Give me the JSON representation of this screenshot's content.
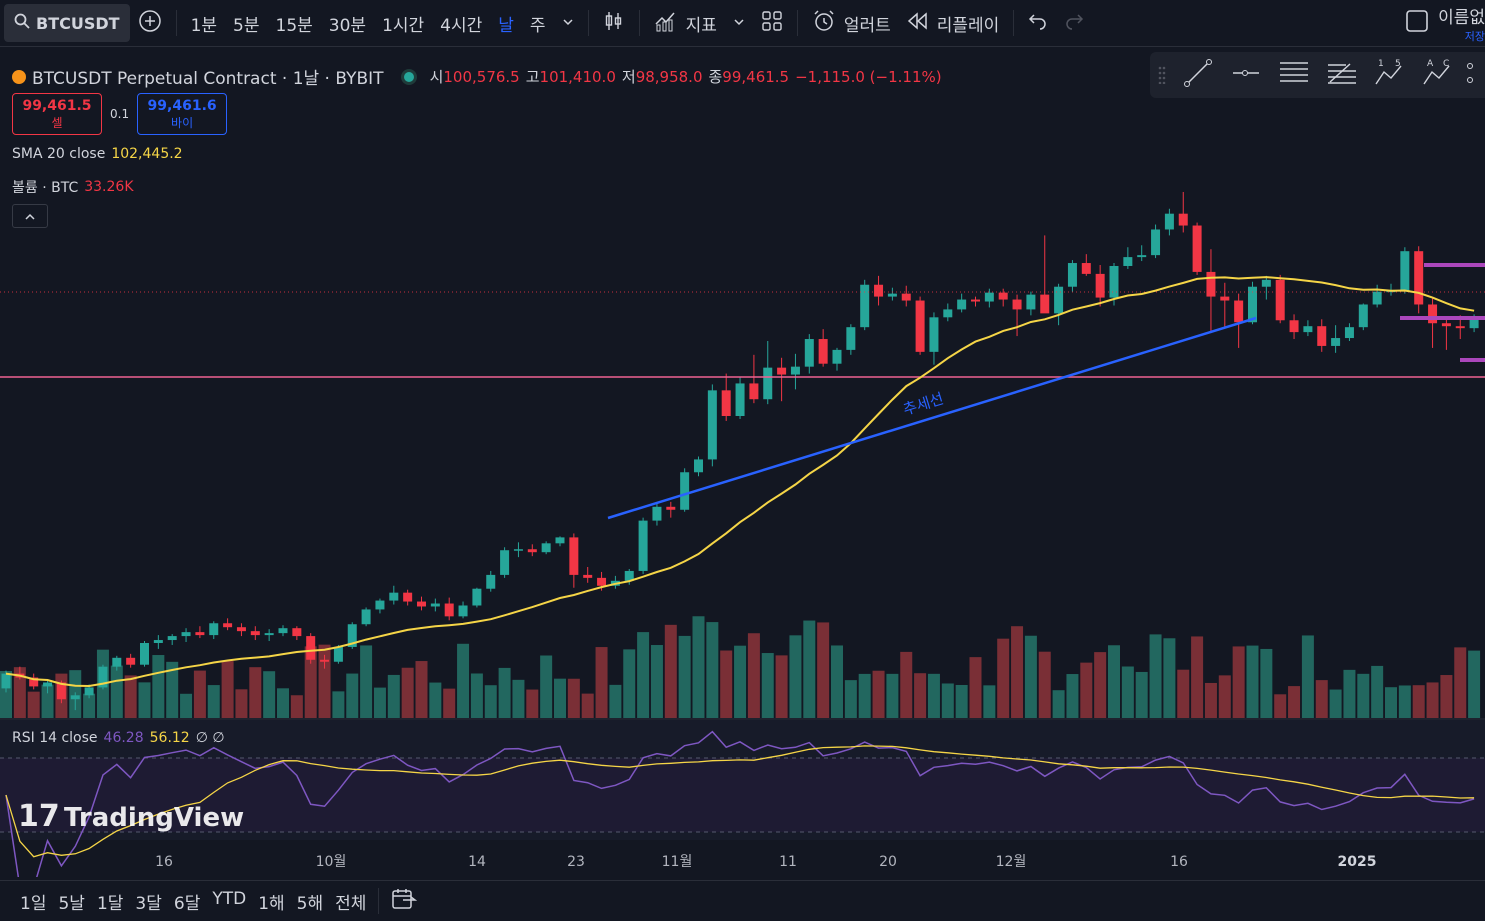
{
  "toolbar": {
    "symbol": "BTCUSDT",
    "intervals": [
      "1분",
      "5분",
      "15분",
      "30분",
      "1시간",
      "4시간",
      "날",
      "주"
    ],
    "active_interval": "날",
    "indicators_label": "지표",
    "alert_label": "얼러트",
    "replay_label": "리플레이",
    "name_label": "이름없",
    "save_label": "저장"
  },
  "legend": {
    "title": "BTCUSDT Perpetual Contract · 1날 · BYBIT",
    "open_label": "시",
    "open": "100,576.5",
    "high_label": "고",
    "high": "101,410.0",
    "low_label": "저",
    "low": "98,958.0",
    "close_label": "종",
    "close": "99,461.5",
    "change": "−1,115.0 (−1.11%)",
    "sell_price": "99,461.5",
    "sell_label": "셀",
    "spread": "0.1",
    "buy_price": "99,461.6",
    "buy_label": "바이",
    "sma_label": "SMA 20 close",
    "sma_value": "102,445.2",
    "volume_label": "볼륨 · BTC",
    "volume_value": "33.26K"
  },
  "rsi": {
    "label": "RSI 14 close",
    "value1": "46.28",
    "value2": "56.12",
    "extra": "∅ ∅"
  },
  "annotation": {
    "trendline_label": "추세선"
  },
  "watermark": "TradingView",
  "time_axis": [
    "16",
    "10월",
    "14",
    "23",
    "11월",
    "11",
    "20",
    "12월",
    "16",
    "2025"
  ],
  "ranges": [
    "1일",
    "5날",
    "1달",
    "3달",
    "6달",
    "YTD",
    "1해",
    "5해",
    "전체"
  ],
  "colors": {
    "up": "#26a69a",
    "down": "#f23645",
    "sma": "#f5d547",
    "trend": "#2962ff",
    "hline": "#f06292",
    "rsi": "#7e57c2",
    "bg": "#131722"
  },
  "chart_data": {
    "type": "candlestick",
    "series_desc": "Daily BTCUSDT candles, approx. Sep 2024 – Jan 2025 (values estimated; axis not visible)",
    "ohlc": [
      [
        58000,
        59800,
        57600,
        59500
      ],
      [
        59500,
        60200,
        58900,
        59100
      ],
      [
        59100,
        59500,
        57900,
        58200
      ],
      [
        58200,
        58900,
        57500,
        58600
      ],
      [
        58600,
        58800,
        56500,
        56900
      ],
      [
        56900,
        57600,
        55800,
        57300
      ],
      [
        57300,
        58400,
        57000,
        58100
      ],
      [
        58100,
        60400,
        57900,
        60200
      ],
      [
        60200,
        61300,
        59800,
        61100
      ],
      [
        61100,
        61500,
        60100,
        60400
      ],
      [
        60400,
        62800,
        60200,
        62600
      ],
      [
        62600,
        63400,
        62000,
        62900
      ],
      [
        62900,
        63500,
        62400,
        63300
      ],
      [
        63300,
        64100,
        62700,
        63700
      ],
      [
        63700,
        64300,
        63100,
        63400
      ],
      [
        63400,
        64800,
        63000,
        64600
      ],
      [
        64600,
        65100,
        63900,
        64200
      ],
      [
        64200,
        64600,
        63300,
        63800
      ],
      [
        63800,
        64300,
        62900,
        63400
      ],
      [
        63400,
        64000,
        62800,
        63600
      ],
      [
        63600,
        64400,
        63300,
        64100
      ],
      [
        64100,
        64300,
        62900,
        63300
      ],
      [
        63300,
        63600,
        60500,
        60900
      ],
      [
        60900,
        61400,
        60000,
        60700
      ],
      [
        60700,
        62400,
        60500,
        62200
      ],
      [
        62200,
        64700,
        62000,
        64500
      ],
      [
        64500,
        66200,
        64300,
        66000
      ],
      [
        66000,
        67100,
        65600,
        66900
      ],
      [
        66900,
        68400,
        66500,
        67700
      ],
      [
        67700,
        68000,
        66400,
        66800
      ],
      [
        66800,
        67300,
        65900,
        66300
      ],
      [
        66300,
        67100,
        65800,
        66600
      ],
      [
        66600,
        67200,
        64900,
        65300
      ],
      [
        65300,
        66800,
        65100,
        66400
      ],
      [
        66400,
        68200,
        66200,
        68100
      ],
      [
        68100,
        69900,
        67800,
        69500
      ],
      [
        69500,
        72300,
        69200,
        72000
      ],
      [
        72000,
        72800,
        71300,
        72100
      ],
      [
        72100,
        72600,
        71400,
        71800
      ],
      [
        71800,
        72900,
        71600,
        72700
      ],
      [
        72700,
        73400,
        72400,
        73300
      ],
      [
        73300,
        73700,
        68200,
        69500
      ],
      [
        69500,
        70300,
        68700,
        69200
      ],
      [
        69200,
        69800,
        67900,
        68400
      ],
      [
        68400,
        69400,
        68100,
        68900
      ],
      [
        68900,
        70100,
        68500,
        69900
      ],
      [
        69900,
        75300,
        69600,
        75000
      ],
      [
        75000,
        76800,
        74500,
        76400
      ],
      [
        76400,
        76900,
        75300,
        76100
      ],
      [
        76100,
        80300,
        75900,
        79900
      ],
      [
        79900,
        81500,
        79500,
        81200
      ],
      [
        81200,
        88800,
        80500,
        88200
      ],
      [
        88200,
        89900,
        85100,
        85600
      ],
      [
        85600,
        89500,
        85300,
        88900
      ],
      [
        88900,
        91800,
        86900,
        87300
      ],
      [
        87300,
        93200,
        86800,
        90500
      ],
      [
        90500,
        91500,
        87100,
        89800
      ],
      [
        89800,
        91900,
        88300,
        90600
      ],
      [
        90600,
        93900,
        89900,
        93400
      ],
      [
        93400,
        94400,
        90600,
        90900
      ],
      [
        90900,
        92500,
        90200,
        92300
      ],
      [
        92300,
        94900,
        91800,
        94600
      ],
      [
        94600,
        99400,
        94300,
        98900
      ],
      [
        98900,
        99800,
        96800,
        97700
      ],
      [
        97700,
        98600,
        97300,
        98000
      ],
      [
        98000,
        98800,
        96700,
        97300
      ],
      [
        97300,
        97700,
        91800,
        92100
      ],
      [
        92100,
        96100,
        90800,
        95600
      ],
      [
        95600,
        97000,
        95200,
        96400
      ],
      [
        96400,
        98000,
        96100,
        97400
      ],
      [
        97400,
        97700,
        96700,
        97200
      ],
      [
        97200,
        98500,
        96600,
        98100
      ],
      [
        98100,
        98500,
        96700,
        97400
      ],
      [
        97400,
        97900,
        93700,
        96400
      ],
      [
        96400,
        98200,
        95800,
        97900
      ],
      [
        97900,
        103900,
        96500,
        96000
      ],
      [
        96000,
        99000,
        94800,
        98700
      ],
      [
        98700,
        101400,
        98200,
        101100
      ],
      [
        101100,
        102000,
        99800,
        100000
      ],
      [
        100000,
        100900,
        96700,
        97600
      ],
      [
        97600,
        101100,
        96800,
        100800
      ],
      [
        100800,
        102700,
        100500,
        101700
      ],
      [
        101700,
        102900,
        101300,
        101900
      ],
      [
        101900,
        105000,
        101600,
        104500
      ],
      [
        104500,
        106600,
        103900,
        106100
      ],
      [
        106100,
        108300,
        104200,
        104900
      ],
      [
        104900,
        105200,
        99900,
        100200
      ],
      [
        100200,
        102500,
        94000,
        97700
      ],
      [
        97700,
        99100,
        94500,
        97300
      ],
      [
        97300,
        98000,
        92500,
        95100
      ],
      [
        95100,
        99200,
        94900,
        98700
      ],
      [
        98700,
        99800,
        97400,
        99400
      ],
      [
        99400,
        99900,
        95000,
        95300
      ],
      [
        95300,
        95900,
        93400,
        94100
      ],
      [
        94100,
        95300,
        93700,
        94700
      ],
      [
        94700,
        95400,
        92100,
        92700
      ],
      [
        92700,
        94800,
        92000,
        93500
      ],
      [
        93500,
        95000,
        93200,
        94600
      ],
      [
        94600,
        97000,
        94300,
        96900
      ],
      [
        96900,
        98900,
        96600,
        98200
      ],
      [
        98200,
        99000,
        97800,
        98300
      ],
      [
        98300,
        102700,
        98000,
        102300
      ],
      [
        102300,
        102800,
        96000,
        96900
      ],
      [
        96900,
        97500,
        92500,
        95000
      ],
      [
        95000,
        95400,
        92300,
        94700
      ],
      [
        94700,
        95800,
        93400,
        94500
      ],
      [
        94500,
        95900,
        94100,
        95500
      ]
    ],
    "sma20": "yellow line over candles",
    "trendline": "ascending blue line labeled 추세선",
    "horizontal_line": "pink horizontal level"
  }
}
